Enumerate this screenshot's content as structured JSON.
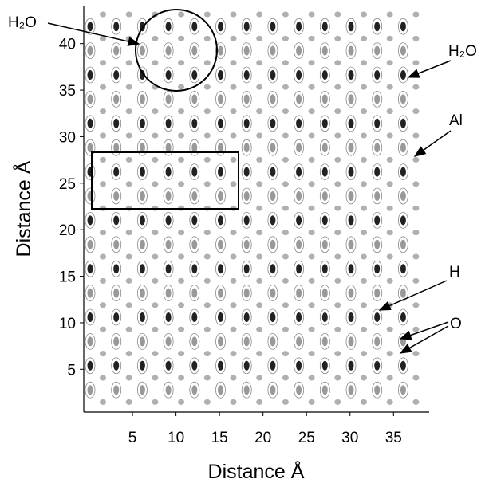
{
  "chart_data": {
    "type": "contour",
    "xlabel": "Distance Å",
    "ylabel": "Distance Å",
    "xlim": [
      -0.6,
      39.1
    ],
    "ylim": [
      0.4,
      44
    ],
    "xticks": [
      5,
      10,
      15,
      20,
      25,
      30,
      35
    ],
    "yticks": [
      5,
      10,
      15,
      20,
      25,
      30,
      35,
      40
    ],
    "annotations": [
      "H₂O",
      "H₂O",
      "Al",
      "H",
      "O"
    ]
  }
}
